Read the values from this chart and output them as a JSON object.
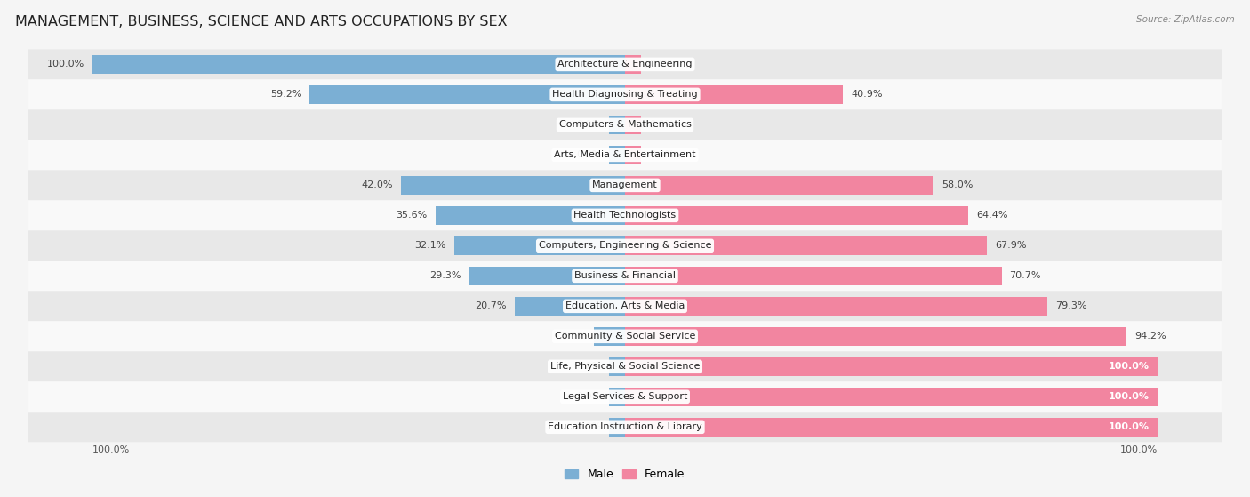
{
  "title": "MANAGEMENT, BUSINESS, SCIENCE AND ARTS OCCUPATIONS BY SEX",
  "source": "Source: ZipAtlas.com",
  "categories": [
    "Architecture & Engineering",
    "Health Diagnosing & Treating",
    "Computers & Mathematics",
    "Arts, Media & Entertainment",
    "Management",
    "Health Technologists",
    "Computers, Engineering & Science",
    "Business & Financial",
    "Education, Arts & Media",
    "Community & Social Service",
    "Life, Physical & Social Science",
    "Legal Services & Support",
    "Education Instruction & Library"
  ],
  "male": [
    100.0,
    59.2,
    0.0,
    0.0,
    42.0,
    35.6,
    32.1,
    29.3,
    20.7,
    5.8,
    0.0,
    0.0,
    0.0
  ],
  "female": [
    0.0,
    40.9,
    0.0,
    0.0,
    58.0,
    64.4,
    67.9,
    70.7,
    79.3,
    94.2,
    100.0,
    100.0,
    100.0
  ],
  "male_color": "#7bafd4",
  "female_color": "#f285a0",
  "bg_color": "#f5f5f5",
  "row_colors": [
    "#e8e8e8",
    "#f9f9f9"
  ],
  "title_fontsize": 11.5,
  "label_fontsize": 8,
  "val_fontsize": 8,
  "bar_height": 0.62,
  "figsize": [
    14.06,
    5.59
  ],
  "xlim": 100,
  "min_bar": 3.0
}
